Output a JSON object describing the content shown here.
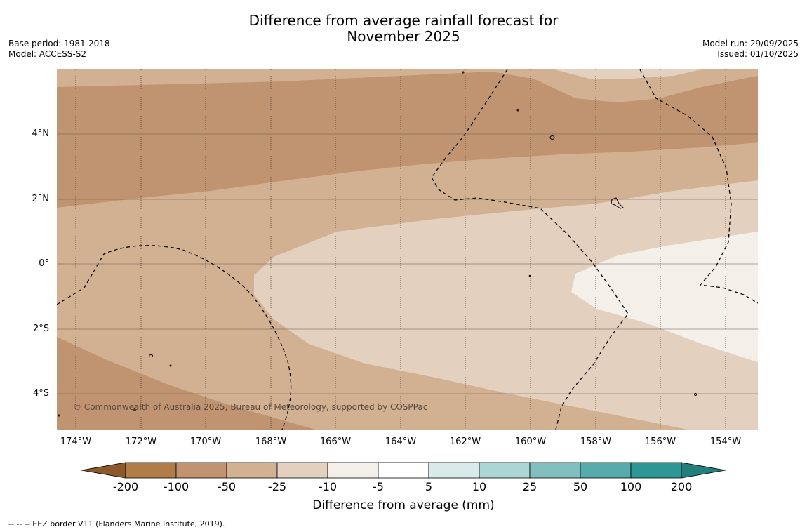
{
  "title": {
    "line1": "Difference from average rainfall forecast for",
    "line2": "November 2025"
  },
  "meta": {
    "base_period": "Base period: 1981-2018",
    "model": "Model: ACCESS-S2",
    "model_run": "Model run: 29/09/2025",
    "issued": "Issued: 01/10/2025"
  },
  "map": {
    "lat_labels": [
      "4°N",
      "2°N",
      "0°",
      "2°S",
      "4°S"
    ],
    "lon_labels": [
      "174°W",
      "172°W",
      "170°W",
      "168°W",
      "166°W",
      "164°W",
      "162°W",
      "160°W",
      "158°W",
      "156°W",
      "154°W"
    ],
    "copyright": "© Commonwealth of Australia 2025, Bureau of Meteorology, supported by COSPPac",
    "eez_note": "--  --  -- EEZ border V11 (Flanders Marine Institute, 2019)."
  },
  "colorbar": {
    "title": "Difference from average (mm)",
    "tick_labels": [
      "-200",
      "-100",
      "-50",
      "-25",
      "-10",
      "-5",
      "5",
      "10",
      "25",
      "50",
      "100",
      "200"
    ],
    "colors": [
      "#8c5a2a",
      "#b07d48",
      "#c09470",
      "#d2b092",
      "#e3d0bf",
      "#f5efe9",
      "#ffffff",
      "#d6ebea",
      "#acd6d5",
      "#82c0bf",
      "#57abab",
      "#2d9795",
      "#217f7c"
    ]
  }
}
